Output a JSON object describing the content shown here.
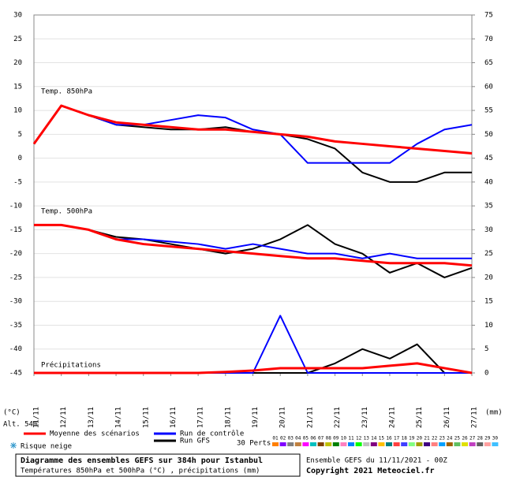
{
  "chart_data": {
    "type": "line",
    "title": "Diagramme des ensembles GEFS sur 384h pour Istanbul",
    "subtitle": "Températures 850hPa et 500hPa (°C) , précipitations (mm)",
    "run_label": "Ensemble GEFS du 11/11/2021 - 00Z",
    "copyright": "Copyright 2021 Meteociel.fr",
    "panel_labels": [
      "Temp. 850hPa",
      "Temp. 500hPa",
      "Précipitations"
    ],
    "y_unit": "(°C)",
    "y2_unit": "(mm)",
    "altitude": "Alt. 54m",
    "snow_label": "Risque neige",
    "categories": [
      "11/11",
      "12/11",
      "13/11",
      "14/11",
      "15/11",
      "16/11",
      "17/11",
      "18/11",
      "19/11",
      "20/11",
      "21/11",
      "22/11",
      "23/11",
      "24/11",
      "25/11",
      "26/11",
      "27/11"
    ],
    "ylim": [
      -45,
      30
    ],
    "yticks": [
      30,
      25,
      20,
      15,
      10,
      5,
      0,
      -5,
      -10,
      -15,
      -20,
      -25,
      -30,
      -35,
      -40,
      -45
    ],
    "y2lim": [
      0,
      75
    ],
    "y2ticks": [
      75,
      70,
      65,
      60,
      55,
      50,
      45,
      40,
      35,
      30,
      25,
      20,
      15,
      10,
      5,
      0
    ],
    "series": [
      {
        "name": "Moyenne des scénarios",
        "color": "#ff0000",
        "width": 3,
        "t850": [
          3,
          11,
          9,
          7.5,
          7,
          6.5,
          6,
          6,
          5.5,
          5,
          4.5,
          3.5,
          3,
          2.5,
          2,
          1.5,
          1
        ],
        "t500": [
          -14,
          -14,
          -15,
          -17,
          -18,
          -18.5,
          -19,
          -19.5,
          -20,
          -20.5,
          -21,
          -21,
          -21.5,
          -22,
          -22,
          -22,
          -22.5
        ],
        "precip": [
          0,
          0,
          0,
          0,
          0,
          0,
          0,
          0.2,
          0.5,
          1,
          1,
          1,
          1,
          1.5,
          2,
          1,
          0
        ]
      },
      {
        "name": "Run de contrôle",
        "color": "#0000ff",
        "width": 2,
        "t850": [
          3,
          11,
          9,
          7,
          7,
          8,
          9,
          8.5,
          6,
          5,
          -1,
          -1,
          -1,
          -1,
          3,
          6,
          7
        ],
        "t500": [
          -14,
          -14,
          -15,
          -17,
          -17,
          -17.5,
          -18,
          -19,
          -18,
          -19,
          -20,
          -20,
          -21,
          -20,
          -21,
          -21,
          -21
        ],
        "precip": [
          0,
          0,
          0,
          0,
          0,
          0,
          0,
          0,
          0,
          12,
          0,
          0,
          0,
          0,
          0,
          0,
          0
        ]
      },
      {
        "name": "Run GFS",
        "color": "#000000",
        "width": 2,
        "t850": [
          3,
          11,
          9,
          7,
          6.5,
          6,
          6,
          6.5,
          5.5,
          5,
          4,
          2,
          -3,
          -5,
          -5,
          -3,
          -3
        ],
        "t500": [
          -14,
          -14,
          -15,
          -16.5,
          -17,
          -18,
          -19,
          -20,
          -19,
          -17,
          -14,
          -18,
          -20,
          -24,
          -22,
          -25,
          -23
        ],
        "precip": [
          0,
          0,
          0,
          0,
          0,
          0,
          0,
          0,
          0,
          0,
          0,
          2,
          5,
          3,
          6,
          0,
          0
        ]
      }
    ],
    "perts_label": "30 Perts.",
    "perts": [
      {
        "name": "01",
        "color": "#ff8000"
      },
      {
        "name": "02",
        "color": "#8000ff"
      },
      {
        "name": "03",
        "color": "#808080"
      },
      {
        "name": "04",
        "color": "#c08040"
      },
      {
        "name": "05",
        "color": "#ff00ff"
      },
      {
        "name": "06",
        "color": "#00c0c0"
      },
      {
        "name": "07",
        "color": "#804000"
      },
      {
        "name": "08",
        "color": "#c0c000"
      },
      {
        "name": "09",
        "color": "#008000"
      },
      {
        "name": "10",
        "color": "#ff80c0"
      },
      {
        "name": "11",
        "color": "#0080ff"
      },
      {
        "name": "12",
        "color": "#00ff00"
      },
      {
        "name": "13",
        "color": "#c0c0c0"
      },
      {
        "name": "14",
        "color": "#800080"
      },
      {
        "name": "15",
        "color": "#ffc000"
      },
      {
        "name": "16",
        "color": "#008080"
      },
      {
        "name": "17",
        "color": "#ff4040"
      },
      {
        "name": "18",
        "color": "#4040ff"
      },
      {
        "name": "19",
        "color": "#80ff80"
      },
      {
        "name": "20",
        "color": "#a0a000"
      },
      {
        "name": "21",
        "color": "#400080"
      },
      {
        "name": "22",
        "color": "#ff8080"
      },
      {
        "name": "23",
        "color": "#00a0ff"
      },
      {
        "name": "24",
        "color": "#a06000"
      },
      {
        "name": "25",
        "color": "#60c060"
      },
      {
        "name": "26",
        "color": "#e0e000"
      },
      {
        "name": "27",
        "color": "#c040c0"
      },
      {
        "name": "28",
        "color": "#606060"
      },
      {
        "name": "29",
        "color": "#ffa0a0"
      },
      {
        "name": "30",
        "color": "#40c0ff"
      }
    ]
  }
}
